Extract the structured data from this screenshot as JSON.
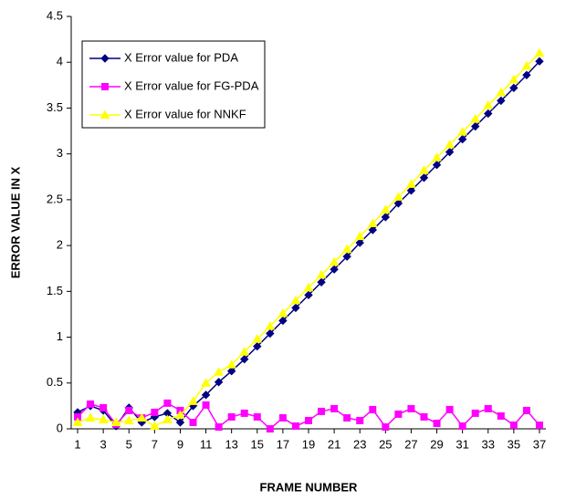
{
  "chart_data": {
    "type": "line",
    "x_label": "FRAME NUMBER",
    "y_label": "ERROR VALUE IN X",
    "x": [
      1,
      2,
      3,
      4,
      5,
      6,
      7,
      8,
      9,
      10,
      11,
      12,
      13,
      14,
      15,
      16,
      17,
      18,
      19,
      20,
      21,
      22,
      23,
      24,
      25,
      26,
      27,
      28,
      29,
      30,
      31,
      32,
      33,
      34,
      35,
      36,
      37
    ],
    "xlim": [
      0.5,
      37.5
    ],
    "xticks": [
      1,
      3,
      5,
      7,
      9,
      11,
      13,
      15,
      17,
      19,
      21,
      23,
      25,
      27,
      29,
      31,
      33,
      35,
      37
    ],
    "ylim": [
      0,
      4.5
    ],
    "yticks": [
      0,
      0.5,
      1,
      1.5,
      2,
      2.5,
      3,
      3.5,
      4,
      4.5
    ],
    "grid": false,
    "legend": "upper left",
    "series": [
      {
        "name": "X Error value for PDA",
        "color": "#000080",
        "marker": "diamond",
        "values": [
          0.18,
          0.25,
          0.2,
          0.03,
          0.23,
          0.07,
          0.13,
          0.17,
          0.07,
          0.25,
          0.37,
          0.51,
          0.63,
          0.76,
          0.9,
          1.04,
          1.18,
          1.32,
          1.46,
          1.6,
          1.74,
          1.88,
          2.03,
          2.17,
          2.31,
          2.46,
          2.6,
          2.74,
          2.88,
          3.02,
          3.16,
          3.3,
          3.44,
          3.58,
          3.72,
          3.86,
          4.01
        ]
      },
      {
        "name": "X Error value for FG-PDA",
        "color": "#ff00ff",
        "marker": "square",
        "values": [
          0.13,
          0.27,
          0.23,
          0.05,
          0.2,
          0.12,
          0.18,
          0.28,
          0.2,
          0.07,
          0.26,
          0.02,
          0.13,
          0.17,
          0.13,
          0,
          0.12,
          0.03,
          0.09,
          0.19,
          0.22,
          0.12,
          0.09,
          0.21,
          0.02,
          0.16,
          0.22,
          0.13,
          0.06,
          0.21,
          0.03,
          0.17,
          0.22,
          0.14,
          0.04,
          0.2,
          0.04
        ]
      },
      {
        "name": "X Error value for NNKF",
        "color": "#ffff00",
        "marker": "triangle",
        "values": [
          0.07,
          0.12,
          0.1,
          0.07,
          0.09,
          0.12,
          0.03,
          0.1,
          0.15,
          0.3,
          0.5,
          0.62,
          0.7,
          0.84,
          0.98,
          1.12,
          1.26,
          1.4,
          1.54,
          1.68,
          1.82,
          1.96,
          2.1,
          2.24,
          2.39,
          2.53,
          2.67,
          2.82,
          2.96,
          3.1,
          3.24,
          3.38,
          3.53,
          3.67,
          3.81,
          3.96,
          4.1
        ]
      }
    ]
  }
}
